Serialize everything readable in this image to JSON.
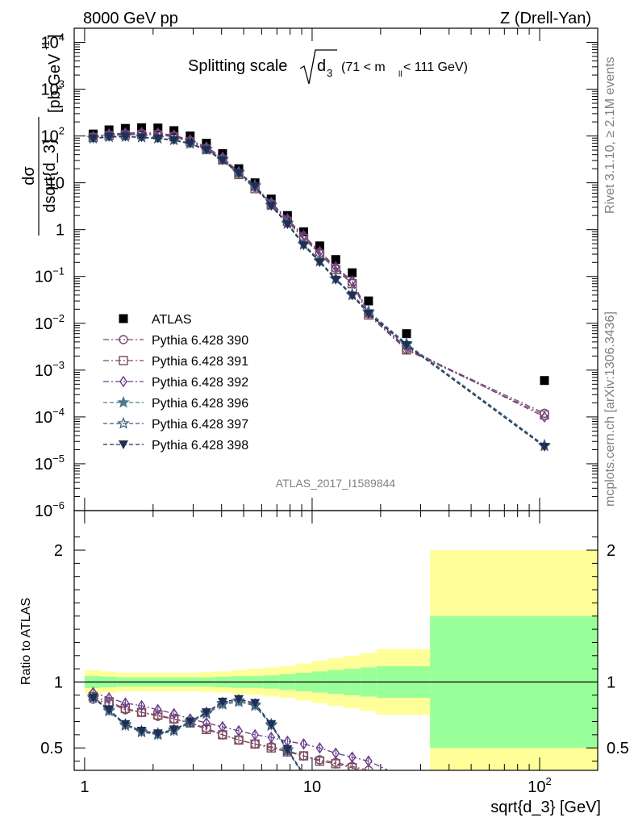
{
  "header": {
    "left": "8000 GeV pp",
    "right": "Z (Drell-Yan)"
  },
  "side_labels": {
    "rivet": "Rivet 3.1.10, ≥ 2.1M events",
    "mcplots": "mcplots.cern.ch [arXiv:1306.3436]"
  },
  "plot_title": {
    "prefix": "Splitting scale",
    "var": "d",
    "var_sub": "3",
    "range_left": "(71 < m",
    "range_sub": "ll",
    "range_right": " < 111 GeV)"
  },
  "watermark": "ATLAS_2017_I1589844",
  "colors": {
    "atlas": "#000000",
    "p390": "#7b4a6e",
    "p391": "#7b4a5a",
    "p392": "#6a3d8a",
    "p396": "#4d7a8a",
    "p397": "#3d5a7a",
    "p398": "#1f2f55",
    "band_inner": "#99ff99",
    "band_outer": "#ffff99"
  },
  "chart_data": {
    "type": "scatter",
    "xlabel": "sqrt{d_3} [GeV]",
    "ylabel_main": "dσ / dsqrt{d_3} [pb,GeV⁻¹]",
    "ylabel_ratio": "Ratio to ATLAS",
    "xscale": "log",
    "xlim": [
      0.9,
      180
    ],
    "main": {
      "yscale": "log",
      "ylim": [
        1e-06,
        20000
      ],
      "yticks": [
        {
          "v": 10000,
          "b": "10",
          "e": "4"
        },
        {
          "v": 1000,
          "b": "10",
          "e": "3"
        },
        {
          "v": 100,
          "b": "10",
          "e": "2"
        },
        {
          "v": 10,
          "b": "10",
          "e": ""
        },
        {
          "v": 1,
          "b": "1",
          "e": ""
        },
        {
          "v": 0.1,
          "b": "10",
          "e": "−1"
        },
        {
          "v": 0.01,
          "b": "10",
          "e": "−2"
        },
        {
          "v": 0.001,
          "b": "10",
          "e": "−3"
        },
        {
          "v": 0.0001,
          "b": "10",
          "e": "−4"
        },
        {
          "v": 1e-05,
          "b": "10",
          "e": "−5"
        },
        {
          "v": 1e-06,
          "b": "10",
          "e": "−6"
        }
      ]
    },
    "ratio": {
      "yscale": "linear",
      "ylim": [
        0.33,
        2.3
      ],
      "yticks": [
        {
          "v": 0.5,
          "label": "0.5"
        },
        {
          "v": 1,
          "label": "1"
        },
        {
          "v": 2,
          "label": "2"
        }
      ]
    },
    "xticks": [
      {
        "v": 1,
        "label": "1"
      },
      {
        "v": 10,
        "label": "10"
      },
      {
        "v": 100,
        "label": "10",
        "exp": "2"
      }
    ],
    "x": [
      1.09,
      1.28,
      1.51,
      1.78,
      2.1,
      2.47,
      2.91,
      3.43,
      4.04,
      4.76,
      5.61,
      6.61,
      7.79,
      9.18,
      10.8,
      12.7,
      15.0,
      17.7,
      26.0,
      105.0
    ],
    "x_edges": [
      1.0,
      1.18,
      1.39,
      1.64,
      1.93,
      2.27,
      2.68,
      3.16,
      3.72,
      4.39,
      5.17,
      6.09,
      7.17,
      8.45,
      9.96,
      11.7,
      13.8,
      16.3,
      19.2,
      33.0,
      180.0
    ],
    "band_inner": [
      0.045,
      0.04,
      0.035,
      0.035,
      0.035,
      0.035,
      0.035,
      0.035,
      0.04,
      0.045,
      0.045,
      0.05,
      0.06,
      0.07,
      0.08,
      0.09,
      0.1,
      0.11,
      0.12,
      0.5
    ],
    "band_outer": [
      0.09,
      0.08,
      0.07,
      0.07,
      0.07,
      0.07,
      0.07,
      0.075,
      0.08,
      0.09,
      0.1,
      0.11,
      0.12,
      0.14,
      0.16,
      0.18,
      0.2,
      0.22,
      0.25,
      1.0
    ],
    "series": [
      {
        "name": "ATLAS",
        "key": "atlas",
        "marker": "square",
        "line": "none",
        "values": [
          110,
          135,
          145,
          150,
          148,
          130,
          100,
          70,
          42,
          20,
          10,
          4.5,
          2.0,
          0.9,
          0.45,
          0.23,
          0.12,
          0.03,
          0.006,
          0.0006
        ],
        "ratio": []
      },
      {
        "name": "Pythia 6.428 390",
        "key": "p390",
        "marker": "circle",
        "line": "dashdot",
        "values": [
          95,
          105,
          110,
          112,
          110,
          100,
          78,
          55,
          33,
          16,
          8,
          3.6,
          1.6,
          0.7,
          0.32,
          0.15,
          0.075,
          0.016,
          0.0028,
          0.00012
        ],
        "ratio": [
          0.87,
          0.84,
          0.79,
          0.77,
          0.74,
          0.72,
          0.69,
          0.65,
          0.6,
          0.56,
          0.53,
          0.51,
          0.48,
          0.44,
          0.41,
          0.39,
          0.36,
          0.33,
          null,
          null
        ]
      },
      {
        "name": "Pythia 6.428 391",
        "key": "p391",
        "marker": "square-open",
        "line": "dashdot",
        "values": [
          93,
          102,
          106,
          108,
          106,
          96,
          75,
          52,
          31,
          15,
          7.5,
          3.4,
          1.5,
          0.65,
          0.3,
          0.14,
          0.07,
          0.015,
          0.0027,
          0.00011
        ],
        "ratio": [
          0.89,
          0.85,
          0.8,
          0.77,
          0.75,
          0.72,
          0.69,
          0.64,
          0.6,
          0.56,
          0.53,
          0.5,
          0.47,
          0.44,
          0.4,
          0.38,
          0.35,
          0.32,
          null,
          null
        ]
      },
      {
        "name": "Pythia 6.428 392",
        "key": "p392",
        "marker": "diamond-open",
        "line": "dashdot",
        "values": [
          97,
          110,
          115,
          118,
          115,
          104,
          82,
          58,
          35,
          17,
          8.5,
          3.8,
          1.7,
          0.75,
          0.34,
          0.16,
          0.08,
          0.017,
          0.003,
          0.0001
        ],
        "ratio": [
          0.92,
          0.88,
          0.84,
          0.82,
          0.79,
          0.76,
          0.72,
          0.69,
          0.66,
          0.63,
          0.6,
          0.58,
          0.55,
          0.53,
          0.5,
          0.46,
          0.43,
          0.4,
          null,
          null
        ]
      },
      {
        "name": "Pythia 6.428 396",
        "key": "p396",
        "marker": "star",
        "line": "dashed",
        "values": [
          90,
          97,
          98,
          95,
          90,
          83,
          70,
          52,
          32,
          17,
          8.8,
          3.4,
          1.4,
          0.5,
          0.22,
          0.09,
          0.042,
          0.018,
          0.0037,
          2.5e-05
        ],
        "ratio": [
          0.89,
          0.79,
          0.68,
          0.63,
          0.61,
          0.64,
          0.7,
          0.77,
          0.84,
          0.86,
          0.83,
          0.68,
          0.49,
          0.3,
          null,
          null,
          null,
          null,
          null,
          null
        ]
      },
      {
        "name": "Pythia 6.428 397",
        "key": "p397",
        "marker": "star-open",
        "line": "dashed",
        "values": [
          89,
          96,
          97,
          94,
          89,
          82,
          69,
          51,
          31,
          16.5,
          8.6,
          3.3,
          1.35,
          0.48,
          0.21,
          0.088,
          0.04,
          0.017,
          0.0035,
          2.4e-05
        ],
        "ratio": [
          0.88,
          0.78,
          0.67,
          0.62,
          0.6,
          0.63,
          0.69,
          0.76,
          0.83,
          0.85,
          0.82,
          0.67,
          0.48,
          0.29,
          null,
          null,
          null,
          null,
          null,
          null
        ]
      },
      {
        "name": "Pythia 6.428 398",
        "key": "p398",
        "marker": "triangle-down",
        "line": "dashed",
        "values": [
          88,
          95,
          96,
          93,
          88,
          81,
          68,
          50,
          30,
          16,
          8.4,
          3.2,
          1.3,
          0.46,
          0.2,
          0.085,
          0.039,
          0.016,
          0.0034,
          2.3e-05
        ],
        "ratio": [
          0.88,
          0.79,
          0.68,
          0.63,
          0.61,
          0.64,
          0.7,
          0.77,
          0.85,
          0.87,
          0.84,
          0.68,
          0.49,
          0.3,
          null,
          null,
          null,
          null,
          null,
          null
        ]
      }
    ]
  }
}
